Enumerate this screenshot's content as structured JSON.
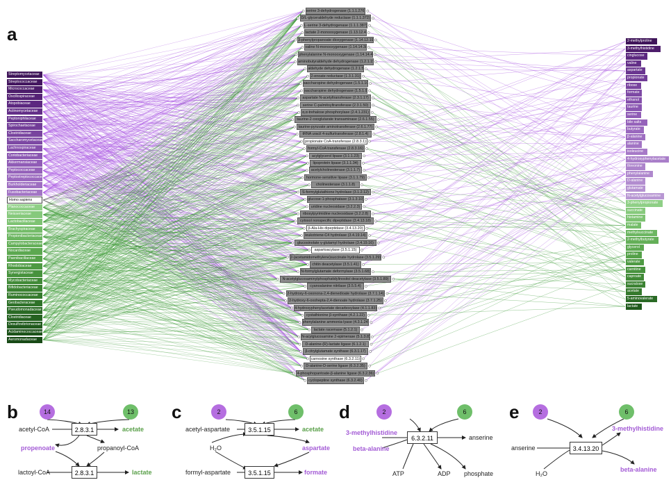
{
  "panel_labels": {
    "a": "a",
    "b": "b",
    "c": "c",
    "d": "d",
    "e": "e"
  },
  "colors": {
    "purple": "#9b4fd9",
    "green": "#3a9a2e",
    "edge_purple": "#a64fe0",
    "edge_green": "#3c9a35",
    "enzyme_grey": "#8c8c8c"
  },
  "organisms": [
    {
      "name": "Streptomycetaceae",
      "color": "#3f1559"
    },
    {
      "name": "Streptococcaceae",
      "color": "#43175f"
    },
    {
      "name": "Micrococcaceae",
      "color": "#4d1d6b"
    },
    {
      "name": "Oscillospiraceae",
      "color": "#552275"
    },
    {
      "name": "Atopobiaceae",
      "color": "#5c2880"
    },
    {
      "name": "Actinomycetaceae",
      "color": "#632f88"
    },
    {
      "name": "Peptoniphilaceae",
      "color": "#6a3690"
    },
    {
      "name": "Spirochaetaceae",
      "color": "#713c97"
    },
    {
      "name": "Clostridiaceae",
      "color": "#78439e"
    },
    {
      "name": "Saccharomycetaceae",
      "color": "#7d49a4"
    },
    {
      "name": "Lachnospiraceae",
      "color": "#844fab"
    },
    {
      "name": "Coriobacteriaceae",
      "color": "#8a56b1"
    },
    {
      "name": "Akkermansiaceae",
      "color": "#905cb6"
    },
    {
      "name": "Peptococcaceae",
      "color": "#9562ba"
    },
    {
      "name": "Peptostreptococcaceae",
      "color": "#9a68be"
    },
    {
      "name": "Burkholderiaceae",
      "color": "#9e6ec1"
    },
    {
      "name": "Fusobacteriaceae",
      "color": "#a274c4"
    },
    {
      "name": "Homo sapiens",
      "color": "#ffffff"
    },
    {
      "name": "Planococcaceae",
      "color": "#8fcf86"
    },
    {
      "name": "Neisseriaceae",
      "color": "#86c97c"
    },
    {
      "name": "Lactobacillaceae",
      "color": "#7ec373"
    },
    {
      "name": "Brachyspiraceae",
      "color": "#75bd6a"
    },
    {
      "name": "Propionibacteriaceae",
      "color": "#6cb661"
    },
    {
      "name": "Campylobacteraceae",
      "color": "#64af58"
    },
    {
      "name": "Nocardiaceae",
      "color": "#5ca850"
    },
    {
      "name": "Paenibacillaceae",
      "color": "#55a149"
    },
    {
      "name": "Rhodobiaceae",
      "color": "#4e9a43"
    },
    {
      "name": "Synergistaceae",
      "color": "#47923d"
    },
    {
      "name": "Mycobacteriaceae",
      "color": "#418a37"
    },
    {
      "name": "Bifidobacteriaceae",
      "color": "#3b8232"
    },
    {
      "name": "Ruminococcaceae",
      "color": "#357a2d"
    },
    {
      "name": "Geobacteraceae",
      "color": "#2f7229"
    },
    {
      "name": "Pseudomonadaceae",
      "color": "#2a6a25"
    },
    {
      "name": "Clostridiaceae",
      "color": "#256221"
    },
    {
      "name": "Desulfovibrionaceae",
      "color": "#205a1d"
    },
    {
      "name": "Acidaminococcaceae",
      "color": "#1c5219"
    },
    {
      "name": "Aeromonadaceae",
      "color": "#184a16"
    }
  ],
  "enzymes": [
    {
      "name": "serine 3-dehydrogenase (1.1.1.276)",
      "white": false
    },
    {
      "name": "D/L-glyceraldehyde reductase (1.1.1.372)",
      "white": false
    },
    {
      "name": "L-serine 3-dehydrogenase (1.1.1.387)",
      "white": false
    },
    {
      "name": "lactate 2-monooxygenase (1.13.12.4)",
      "white": false
    },
    {
      "name": "3-phenylpropanoate dioxygenase (1.14.12.19)",
      "white": false
    },
    {
      "name": "valine N-monooxygenase (1.14.14.38)",
      "white": false
    },
    {
      "name": "phenylalanine N-monooxygenase (1.14.14.40)",
      "white": false
    },
    {
      "name": "aminobutyraldehyde dehydrogenase (1.2.1.19)",
      "white": false
    },
    {
      "name": "aldehyde dehydrogenase (1.2.1.5)",
      "white": false
    },
    {
      "name": "2-enoate reductase (1.3.1.31)",
      "white": false
    },
    {
      "name": "saccharopine dehydrogenase (1.5.1.10)",
      "white": false
    },
    {
      "name": "saccharopine dehydrogenase (1.5.1.9)",
      "white": false
    },
    {
      "name": "aspartate N-acetyltransferase (2.3.1.17)",
      "white": false
    },
    {
      "name": "serine C-palmitoyltransferase (2.3.1.50)",
      "white": false
    },
    {
      "name": "α,α-trehalose phosphorylase (2.4.1.231)",
      "white": false
    },
    {
      "name": "taurine-2-oxoglutarate transaminase (2.6.1.55)",
      "white": false
    },
    {
      "name": "taurine-pyruvate aminotransferase (2.6.1.77)",
      "white": false
    },
    {
      "name": "tRNA uracil 4-sulfurtransferase (2.8.1.4)",
      "white": false
    },
    {
      "name": "propionate CoA-transferase (2.8.3.1)",
      "white": true
    },
    {
      "name": "formyl-CoA transferase (2.8.3.16)",
      "white": false
    },
    {
      "name": "acylglycerol lipase (3.1.1.23)",
      "white": false
    },
    {
      "name": "lipoprotein lipase (3.1.1.34)",
      "white": false
    },
    {
      "name": "acetylcholinesterase (3.1.1.7)",
      "white": false
    },
    {
      "name": "hormone-sensitive lipase (3.1.1.79)",
      "white": false
    },
    {
      "name": "cholinesterase (3.1.1.8)",
      "white": false
    },
    {
      "name": "S-formylglutathione hydrolase (3.1.2.12)",
      "white": false
    },
    {
      "name": "glucose-1-phosphatase (3.1.3.10)",
      "white": false
    },
    {
      "name": "uridine nucleosidase (3.2.2.3)",
      "white": false
    },
    {
      "name": "ribosylpyrimidine nucleosidase (3.2.2.8)",
      "white": false
    },
    {
      "name": "cytosol nonspecific dipeptidase (3.4.13.18)",
      "white": false
    },
    {
      "name": "β-Ala-His dipeptidase (3.4.13.20)",
      "white": true
    },
    {
      "name": "leukotriene-C4 hydrolase (3.4.19.14)",
      "white": false
    },
    {
      "name": "glucosinolate γ-glutamyl hydrolase (3.4.19.16)",
      "white": false
    },
    {
      "name": "aspartoacylase (3.5.1.15)",
      "white": true
    },
    {
      "name": "2-(acetamidomethylene)succinate hydrolase (3.5.1.29)",
      "white": false
    },
    {
      "name": "chitin deacetylase (3.5.1.41)",
      "white": false
    },
    {
      "name": "N-formylglutamate deformylase (3.5.1.68)",
      "white": false
    },
    {
      "name": "N-acetylglucosaminylphosphatidylinositol deacetylase (3.5.1.89)",
      "white": false
    },
    {
      "name": "cyanoalanine nitrilase (3.5.5.4)",
      "white": false
    },
    {
      "name": "2-hydroxy-6-oxonona-2,4-dienedioate hydrolase (3.7.1.14)",
      "white": false
    },
    {
      "name": "2-hydroxy-6-oxohepta-2,4-dienoate hydrolase (3.7.1.25)",
      "white": false
    },
    {
      "name": "4-hydroxyphenylacetate decarboxylase (4.1.1.83)",
      "white": false
    },
    {
      "name": "cystathionine β-synthase (4.2.1.22)",
      "white": false
    },
    {
      "name": "phenylalanine ammonia-lyase (4.3.1.24)",
      "white": false
    },
    {
      "name": "lactate racemase (5.1.2.1)",
      "white": false
    },
    {
      "name": "N-acylglucosamine 2-epimerase (5.1.3.8)",
      "white": false
    },
    {
      "name": "D-alanine-(R)-lactate ligase (6.1.2.1)",
      "white": false
    },
    {
      "name": "β-citrylglutamate synthase (6.3.1.17)",
      "white": false
    },
    {
      "name": "carnosine synthase (6.3.2.11)",
      "white": true
    },
    {
      "name": "D-alanine-D-serine ligase (6.3.2.35)",
      "white": false
    },
    {
      "name": "4-phosphopantoate-β-alanine ligase (6.3.2.36)",
      "white": false
    },
    {
      "name": "cyclopeptine synthase (6.3.2.40)",
      "white": false
    }
  ],
  "metabolites": [
    {
      "name": "2-methylproline",
      "color": "#3f1559"
    },
    {
      "name": "3-methylhistidine",
      "color": "#4d1d6b"
    },
    {
      "name": "cinglucose",
      "color": "#5c2880"
    },
    {
      "name": "valine",
      "color": "#632f88"
    },
    {
      "name": "aspartate",
      "color": "#6a3690"
    },
    {
      "name": "propionate",
      "color": "#713c97"
    },
    {
      "name": "ribose",
      "color": "#78439e"
    },
    {
      "name": "formate",
      "color": "#7d49a4"
    },
    {
      "name": "ethanol",
      "color": "#844fab"
    },
    {
      "name": "taurine",
      "color": "#8a56b1"
    },
    {
      "name": "serine",
      "color": "#905cb6"
    },
    {
      "name": "bile salts",
      "color": "#9562ba"
    },
    {
      "name": "butyrate",
      "color": "#9a68be"
    },
    {
      "name": "β-alanine",
      "color": "#9e6ec1"
    },
    {
      "name": "alanine",
      "color": "#a274c4"
    },
    {
      "name": "isoleucine",
      "color": "#a679c7"
    },
    {
      "name": "4-hydroxyphenylacetate",
      "color": "#a97ec9"
    },
    {
      "name": "threonine",
      "color": "#ac83cb"
    },
    {
      "name": "phenylalanine",
      "color": "#af88cd"
    },
    {
      "name": "D-alanine",
      "color": "#b28dcf"
    },
    {
      "name": "glutamate",
      "color": "#b592d1"
    },
    {
      "name": "N-acetylglucosamine",
      "color": "#b897d3"
    },
    {
      "name": "3-phenylpropionate",
      "color": "#8fcf86"
    },
    {
      "name": "succinate",
      "color": "#86c97c"
    },
    {
      "name": "histamine",
      "color": "#7ec373"
    },
    {
      "name": "malate",
      "color": "#75bd6a"
    },
    {
      "name": "methylsuccinate",
      "color": "#6cb661"
    },
    {
      "name": "2-methylbutyrate",
      "color": "#64af58"
    },
    {
      "name": "glycerol",
      "color": "#5ca850"
    },
    {
      "name": "proline",
      "color": "#55a149"
    },
    {
      "name": "valerate",
      "color": "#4e9a43"
    },
    {
      "name": "carnitine",
      "color": "#47923d"
    },
    {
      "name": "caproate",
      "color": "#418a37"
    },
    {
      "name": "sucralose",
      "color": "#3b8232"
    },
    {
      "name": "acetate",
      "color": "#357a2d"
    },
    {
      "name": "5-aminovalerate",
      "color": "#2a6a25"
    },
    {
      "name": "lactate",
      "color": "#205a1d"
    }
  ],
  "panel_b": {
    "n_purple": "14",
    "n_green": "13",
    "ec_top": "2.8.3.1",
    "ec_bottom": "2.8.3.1",
    "sub1": "acetyl-CoA",
    "prod1": "acetate",
    "mid_left": "propenoate",
    "mid_right": "propanoyl-CoA",
    "sub2": "lactoyl-CoA",
    "prod2": "lactate"
  },
  "panel_c": {
    "n_purple": "2",
    "n_green": "6",
    "ec_top": "3.5.1.15",
    "ec_bottom": "3.5.1.15",
    "sub1": "acetyl-aspartate",
    "prod1": "acetate",
    "mid_left": "H₂O",
    "mid_right": "aspartate",
    "sub2": "formyl-aspartate",
    "prod2": "formate"
  },
  "panel_d": {
    "n_purple": "2",
    "n_green": "6",
    "ec": "6.3.2.11",
    "sub1": "3-methylhistidine",
    "sub2": "beta-alanine",
    "prod1": "anserine",
    "bottom1": "ATP",
    "bottom2": "ADP",
    "bottom3": "phosphate"
  },
  "panel_e": {
    "n_purple": "2",
    "n_green": "6",
    "ec": "3.4.13.20",
    "sub1": "anserine",
    "sub2": "H₂O",
    "prod1": "3-methylhistidine",
    "prod2": "beta-alanine"
  }
}
